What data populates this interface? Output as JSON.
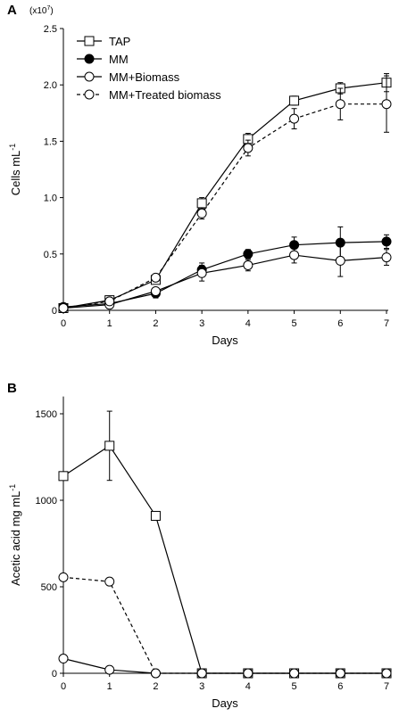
{
  "chart_data": [
    {
      "type": "line",
      "panel_label": "A",
      "multiplier": "(x10",
      "multiplier_exp": "7",
      "multiplier_close": ")",
      "ylabel": "Cells mL",
      "ylabel_sup": "-1",
      "xlabel": "Days",
      "ylim": [
        0,
        2.5
      ],
      "yticks": [
        "0",
        "0.5",
        "1.0",
        "1.5",
        "2.0",
        "2.5"
      ],
      "ytick_values": [
        0,
        0.5,
        1.0,
        1.5,
        2.0,
        2.5
      ],
      "xlim": [
        0,
        7
      ],
      "xticks": [
        "0",
        "1",
        "2",
        "3",
        "4",
        "5",
        "6",
        "7"
      ],
      "x": [
        0,
        1,
        2,
        3,
        4,
        5,
        6,
        7
      ],
      "legend_position": "top-left",
      "series": [
        {
          "name": "TAP",
          "marker": "square",
          "fill": "white",
          "dash": "solid",
          "values": [
            0.02,
            0.09,
            0.27,
            0.95,
            1.52,
            1.86,
            1.97,
            2.02
          ],
          "errors": [
            0.01,
            0.02,
            0.03,
            0.05,
            0.05,
            0.04,
            0.05,
            0.08
          ]
        },
        {
          "name": "MM",
          "marker": "circle",
          "fill": "black",
          "dash": "solid",
          "values": [
            0.03,
            0.06,
            0.15,
            0.36,
            0.5,
            0.58,
            0.6,
            0.61
          ],
          "errors": [
            0.01,
            0.02,
            0.04,
            0.06,
            0.04,
            0.07,
            0.14,
            0.06
          ]
        },
        {
          "name": "MM+Biomass",
          "marker": "circle",
          "fill": "white",
          "dash": "solid",
          "values": [
            0.02,
            0.05,
            0.17,
            0.33,
            0.4,
            0.49,
            0.44,
            0.47
          ],
          "errors": [
            0.01,
            0.01,
            0.03,
            0.07,
            0.05,
            0.07,
            0.14,
            0.07
          ]
        },
        {
          "name": "MM+Treated biomass",
          "marker": "circle",
          "fill": "white",
          "dash": "dashed",
          "values": [
            0.02,
            0.08,
            0.29,
            0.86,
            1.44,
            1.7,
            1.83,
            1.83
          ],
          "errors": [
            0.01,
            0.02,
            0.03,
            0.05,
            0.07,
            0.09,
            0.14,
            0.25
          ]
        }
      ]
    },
    {
      "type": "line",
      "panel_label": "B",
      "ylabel": "Acetic acid mg mL",
      "ylabel_sup": "-1",
      "xlabel": "Days",
      "ylim": [
        0,
        1600
      ],
      "yticks": [
        "0",
        "500",
        "1000",
        "1500"
      ],
      "ytick_values": [
        0,
        500,
        1000,
        1500
      ],
      "xlim": [
        0,
        7
      ],
      "xticks": [
        "0",
        "1",
        "2",
        "3",
        "4",
        "5",
        "6",
        "7"
      ],
      "x": [
        0,
        1,
        2,
        3,
        4,
        5,
        6,
        7
      ],
      "series": [
        {
          "name": "TAP",
          "marker": "square",
          "fill": "white",
          "dash": "solid",
          "values": [
            1140,
            1315,
            910,
            0,
            0,
            0,
            0,
            0
          ],
          "errors": [
            0,
            200,
            20,
            0,
            0,
            0,
            0,
            0
          ]
        },
        {
          "name": "MM+Biomass",
          "marker": "circle",
          "fill": "white",
          "dash": "solid",
          "values": [
            85,
            20,
            0,
            0,
            0,
            0,
            0,
            0
          ],
          "errors": [
            0,
            0,
            0,
            0,
            0,
            0,
            0,
            0
          ]
        },
        {
          "name": "MM+Treated biomass",
          "marker": "circle",
          "fill": "white",
          "dash": "dashed",
          "values": [
            555,
            530,
            0,
            0,
            0,
            0,
            0,
            0
          ],
          "errors": [
            0,
            0,
            0,
            0,
            0,
            0,
            0,
            0
          ]
        }
      ]
    }
  ]
}
